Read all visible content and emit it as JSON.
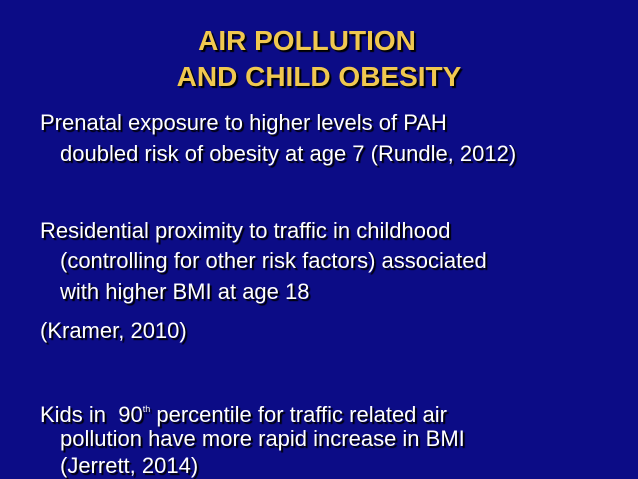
{
  "title": {
    "lines": [
      "AIR POLLUTION",
      "AND CHILD OBESITY"
    ]
  },
  "paragraphs": [
    {
      "lines": [
        "Prenatal exposure to higher levels of PAH",
        "doubled risk of obesity at age 7 (Rundle, 2012)"
      ]
    },
    {
      "lines": [
        "Residential proximity to traffic in childhood",
        "(controlling for other risk factors) associated",
        "with higher BMI at age 18"
      ]
    },
    {
      "lines": [
        "(Kramer, 2010)"
      ]
    },
    {
      "first_line": {
        "before": "Kids in  90",
        "sup": "th",
        "after": " percentile for traffic related air"
      },
      "lines": [
        "pollution have more rapid increase in BMI",
        "(Jerrett, 2014)"
      ]
    }
  ]
}
